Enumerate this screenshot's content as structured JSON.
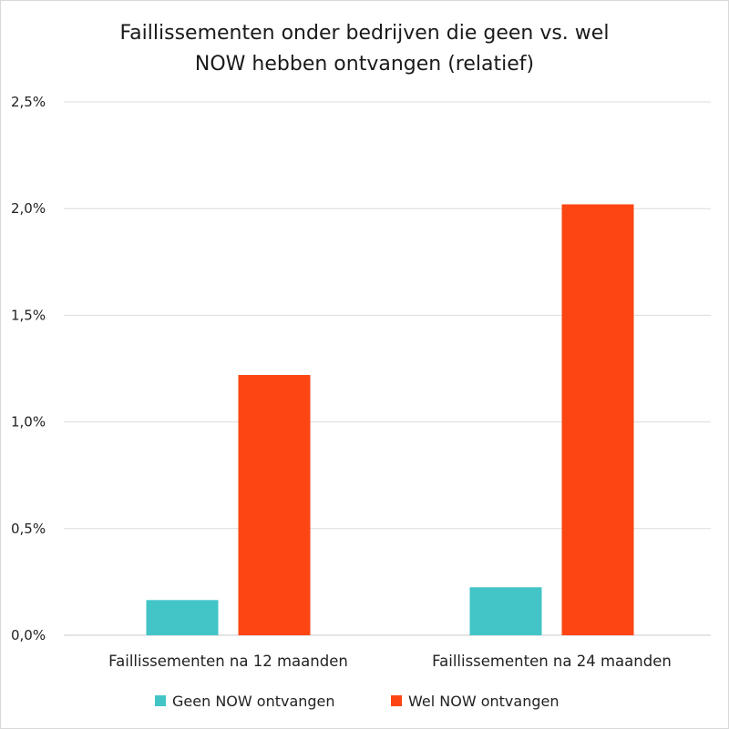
{
  "chart_data": {
    "type": "bar",
    "title_line1": "Faillissementen onder bedrijven die geen vs. wel",
    "title_line2": "NOW hebben ontvangen (relatief)",
    "categories": [
      "Faillissementen na 12 maanden",
      "Faillissementen na 24 maanden"
    ],
    "series": [
      {
        "name": "Geen NOW ontvangen",
        "color": "#43C4C7",
        "values": [
          0.165,
          0.225
        ]
      },
      {
        "name": "Wel NOW ontvangen",
        "color": "#FC4513",
        "values": [
          1.22,
          2.02
        ]
      }
    ],
    "y_ticks": [
      "0,0%",
      "0,5%",
      "1,0%",
      "1,5%",
      "2,0%",
      "2,5%"
    ],
    "y_tick_values": [
      0,
      0.5,
      1.0,
      1.5,
      2.0,
      2.5
    ],
    "ylim": [
      0,
      2.5
    ],
    "grid": true,
    "legend_position": "bottom"
  }
}
